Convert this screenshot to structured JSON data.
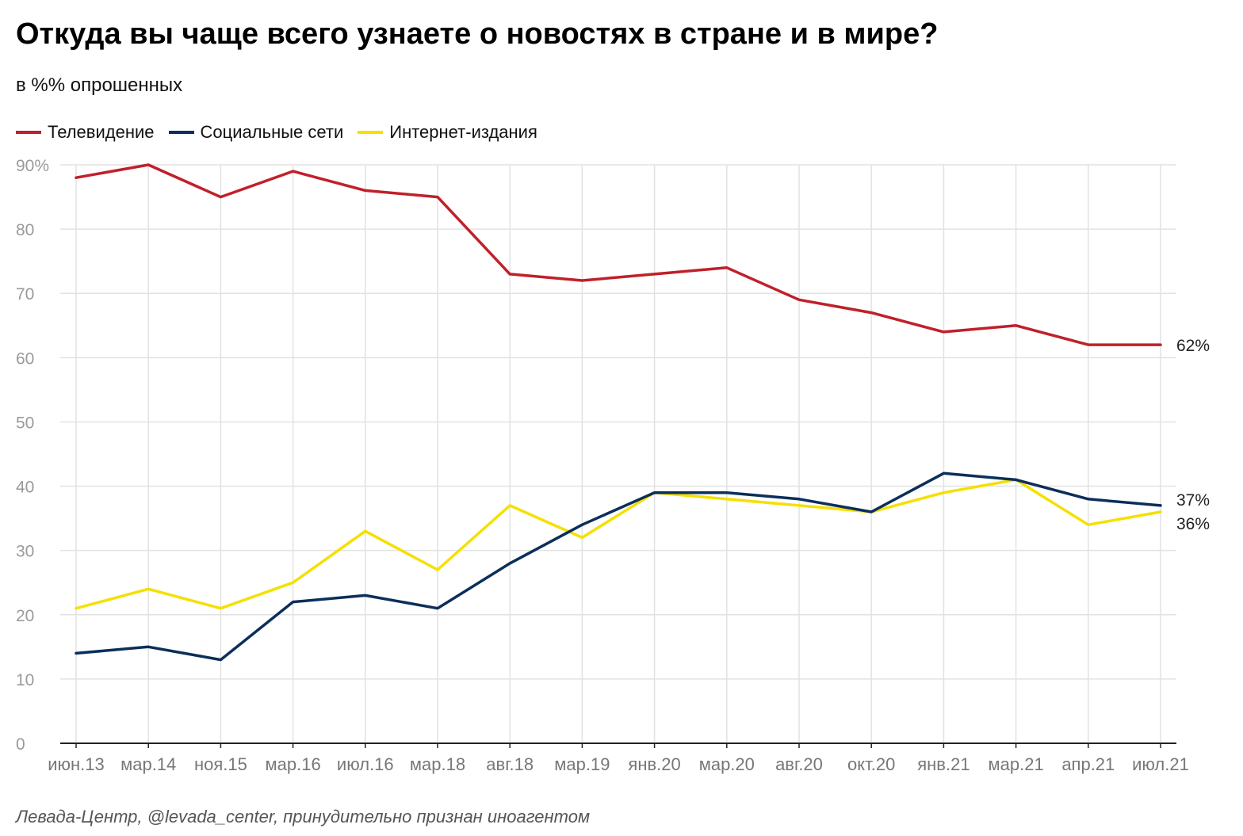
{
  "header": {
    "title": "Откуда вы чаще всего узнаете о новостях в стране и в мире?",
    "subtitle": "в %% опрошенных"
  },
  "footer": {
    "source": "Левада-Центр, @levada_center, принудительно признан иноагентом"
  },
  "chart_data": {
    "type": "line",
    "title": "Откуда вы чаще всего узнаете о новостях в стране и в мире?",
    "subtitle": "в %% опрошенных",
    "xlabel": "",
    "ylabel": "",
    "categories": [
      "июн.13",
      "мар.14",
      "ноя.15",
      "мар.16",
      "июл.16",
      "мар.18",
      "авг.18",
      "мар.19",
      "янв.20",
      "мар.20",
      "авг.20",
      "окт.20",
      "янв.21",
      "мар.21",
      "апр.21",
      "июл.21"
    ],
    "ylim": [
      0,
      90
    ],
    "yticks": [
      0,
      10,
      20,
      30,
      40,
      50,
      60,
      70,
      80,
      90
    ],
    "ytick_labels": [
      "0",
      "10",
      "20",
      "30",
      "40",
      "50",
      "60",
      "70",
      "80",
      "90%"
    ],
    "grid": true,
    "legend_position": "top-left",
    "series": [
      {
        "name": "Телевидение",
        "color": "#C0202A",
        "values": [
          88,
          90,
          85,
          89,
          86,
          85,
          73,
          72,
          73,
          74,
          69,
          67,
          64,
          65,
          62,
          62
        ],
        "end_label": "62%"
      },
      {
        "name": "Социальные сети",
        "color": "#0B2F5A",
        "values": [
          14,
          15,
          13,
          22,
          23,
          21,
          28,
          34,
          39,
          39,
          38,
          36,
          42,
          41,
          38,
          37
        ],
        "end_label": "37%"
      },
      {
        "name": "Интернет-издания",
        "color": "#F5E000",
        "values": [
          21,
          24,
          21,
          25,
          33,
          27,
          37,
          32,
          39,
          38,
          37,
          36,
          39,
          41,
          34,
          36
        ],
        "end_label": "36%"
      }
    ]
  }
}
